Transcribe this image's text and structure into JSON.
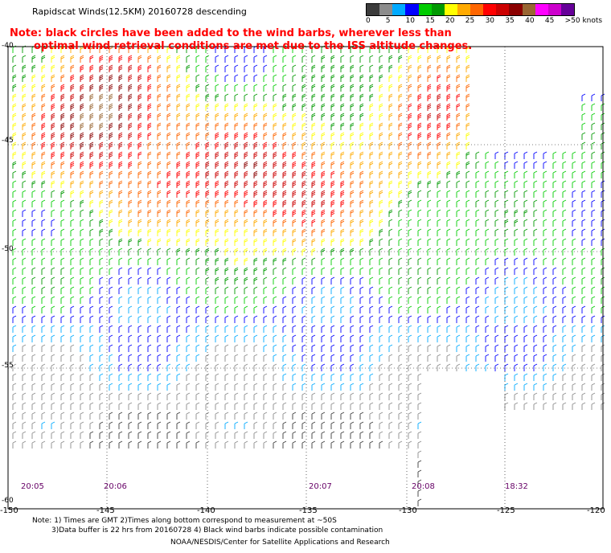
{
  "title": "Rapidscat Winds(12.5KM) 20160728 descending",
  "note": {
    "line1": "Note: black circles have been added to the wind barbs, wherever less than",
    "line2": "optimal wind retrieval conditions are met due to the ISS altitude changes."
  },
  "legend": {
    "colors": [
      "#3c3c3c",
      "#8c8c8c",
      "#00aaff",
      "#0000ff",
      "#00cc00",
      "#009900",
      "#ffff00",
      "#ffaa00",
      "#ff6600",
      "#ff0000",
      "#cc0000",
      "#8b0000",
      "#996633",
      "#ff00ff",
      "#cc00cc",
      "#660099"
    ],
    "labels": [
      "0",
      "5",
      "10",
      "15",
      "20",
      "25",
      "30",
      "35",
      "40",
      "45",
      ">50 knots"
    ]
  },
  "map": {
    "lon_labels": [
      "-150",
      "-145",
      "-140",
      "-135",
      "-130",
      "-125",
      "-120"
    ],
    "lat_labels": [
      "-40",
      "-45",
      "-50",
      "-55",
      "-60"
    ],
    "times": [
      "20:05",
      "20:06",
      "20:07",
      "20:08",
      "18:32"
    ]
  },
  "footer": {
    "line1": "Note: 1) Times are GMT 2)Times along bottom correspond to measurement at ~50S",
    "line2": "3)Data buffer is 22 hrs from 20160728 4) Black wind barbs indicate possible contamination",
    "line3": "NOAA/NESDIS/Center for Satellite Applications and Research"
  }
}
